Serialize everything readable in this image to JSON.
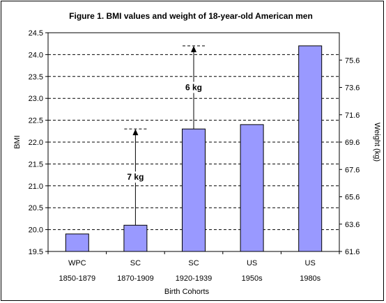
{
  "chart_data": {
    "type": "bar",
    "title": "Figure 1. BMI values and weight of 18-year-old American men",
    "xlabel": "Birth Cohorts",
    "ylabel": "BMI",
    "y2label": "Weight (kg)",
    "ylim": [
      19.5,
      24.5
    ],
    "yticks": [
      "19.5",
      "20.0",
      "20.5",
      "21.0",
      "21.5",
      "22.0",
      "22.5",
      "23.0",
      "23.5",
      "24.0",
      "24.5"
    ],
    "y2lim": [
      61.6,
      77.6
    ],
    "y2ticks": [
      "61.6",
      "63.6",
      "65.6",
      "67.6",
      "69.6",
      "71.6",
      "73.6",
      "75.6"
    ],
    "grid": "horizontal dashed",
    "bar_color": "#9999ff",
    "categories": [
      {
        "group": "WPC",
        "period": "1850-1879"
      },
      {
        "group": "SC",
        "period": "1870-1909"
      },
      {
        "group": "SC",
        "period": "1920-1939"
      },
      {
        "group": "US",
        "period": "1950s"
      },
      {
        "group": "US",
        "period": "1980s"
      }
    ],
    "values": [
      19.9,
      20.1,
      22.3,
      22.4,
      24.2
    ],
    "annotations": [
      {
        "label": "7 kg",
        "category_index": 1,
        "from": 20.1,
        "to": 22.3
      },
      {
        "label": "6 kg",
        "category_index": 2,
        "from": 22.3,
        "to": 24.2
      }
    ]
  }
}
